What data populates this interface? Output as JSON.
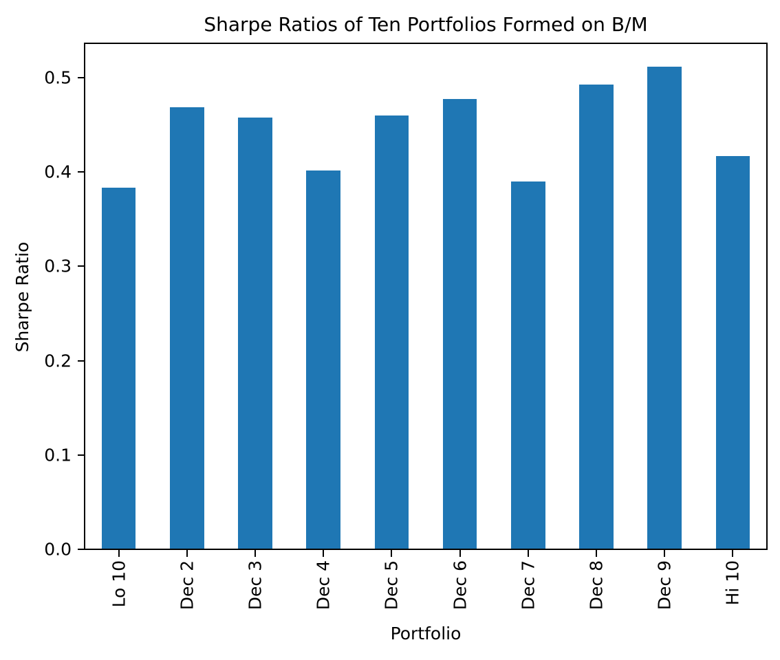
{
  "chart_data": {
    "type": "bar",
    "title": "Sharpe Ratios of Ten Portfolios Formed on B/M",
    "xlabel": "Portfolio",
    "ylabel": "Sharpe Ratio",
    "categories": [
      "Lo 10",
      "Dec 2",
      "Dec 3",
      "Dec 4",
      "Dec 5",
      "Dec 6",
      "Dec 7",
      "Dec 8",
      "Dec 9",
      "Hi 10"
    ],
    "values": [
      0.383,
      0.468,
      0.457,
      0.401,
      0.459,
      0.477,
      0.389,
      0.492,
      0.511,
      0.416
    ],
    "yticks": [
      0.0,
      0.1,
      0.2,
      0.3,
      0.4,
      0.5
    ],
    "ytick_labels": [
      "0.0",
      "0.1",
      "0.2",
      "0.3",
      "0.4",
      "0.5"
    ],
    "ylim": [
      0,
      0.536
    ],
    "xtick_label_rotation_deg": 90,
    "bar_color": "#1f77b4",
    "spine_color": "#000000",
    "text_color": "#000000",
    "background_color": "#ffffff",
    "grid": false,
    "legend_position": "none"
  }
}
